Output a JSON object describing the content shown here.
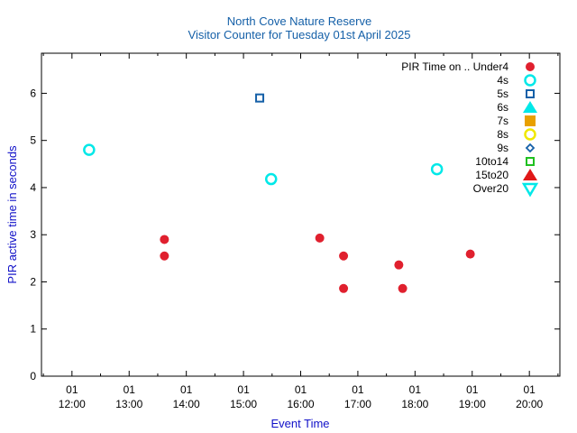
{
  "chart_data": {
    "type": "scatter",
    "title": "North Cove Nature Reserve",
    "subtitle": "Visitor Counter for Tuesday 01st April 2025",
    "xlabel": "Event Time",
    "ylabel": "PIR active time in seconds",
    "x_range": [
      "11:28",
      "20:32"
    ],
    "ylim": [
      0,
      6.85
    ],
    "x_ticks": [
      {
        "time": "12:00",
        "day": "01",
        "hour": "12:00"
      },
      {
        "time": "13:00",
        "day": "01",
        "hour": "13:00"
      },
      {
        "time": "14:00",
        "day": "01",
        "hour": "14:00"
      },
      {
        "time": "15:00",
        "day": "01",
        "hour": "15:00"
      },
      {
        "time": "16:00",
        "day": "01",
        "hour": "16:00"
      },
      {
        "time": "17:00",
        "day": "01",
        "hour": "17:00"
      },
      {
        "time": "18:00",
        "day": "01",
        "hour": "18:00"
      },
      {
        "time": "19:00",
        "day": "01",
        "hour": "19:00"
      },
      {
        "time": "20:00",
        "day": "01",
        "hour": "20:00"
      }
    ],
    "y_ticks": [
      "0",
      "1",
      "2",
      "3",
      "4",
      "5",
      "6"
    ],
    "legend_title": "PIR Time on ..",
    "legend_position": "top-right",
    "series": [
      {
        "name": "Under4",
        "marker": "circle-filled",
        "color": "#e0202e",
        "points": [
          {
            "x": "13:37",
            "y": 2.9
          },
          {
            "x": "13:37",
            "y": 2.55
          },
          {
            "x": "16:20",
            "y": 2.93
          },
          {
            "x": "16:45",
            "y": 2.55
          },
          {
            "x": "16:45",
            "y": 1.86
          },
          {
            "x": "17:43",
            "y": 2.36
          },
          {
            "x": "17:47",
            "y": 1.86
          },
          {
            "x": "18:58",
            "y": 2.59
          }
        ]
      },
      {
        "name": "4s",
        "marker": "circle-open",
        "color": "#00e8e8",
        "points": [
          {
            "x": "12:18",
            "y": 4.8
          },
          {
            "x": "15:29",
            "y": 4.18
          },
          {
            "x": "18:23",
            "y": 4.39
          }
        ]
      },
      {
        "name": "5s",
        "marker": "square-open",
        "color": "#1560a8",
        "points": [
          {
            "x": "15:17",
            "y": 5.9
          }
        ]
      },
      {
        "name": "6s",
        "marker": "triangle-filled",
        "color": "#00e8e8",
        "points": []
      },
      {
        "name": "7s",
        "marker": "square-filled",
        "color": "#e8a000",
        "points": []
      },
      {
        "name": "8s",
        "marker": "circle-open",
        "color": "#f0e800",
        "points": []
      },
      {
        "name": "9s",
        "marker": "diamond-open",
        "color": "#1560a8",
        "points": []
      },
      {
        "name": "10to14",
        "marker": "square-open",
        "color": "#20c020",
        "points": []
      },
      {
        "name": "15to20",
        "marker": "triangle-filled",
        "color": "#e01818",
        "points": []
      },
      {
        "name": "Over20",
        "marker": "triangle-down-open",
        "color": "#00e8e8",
        "points": []
      }
    ]
  }
}
